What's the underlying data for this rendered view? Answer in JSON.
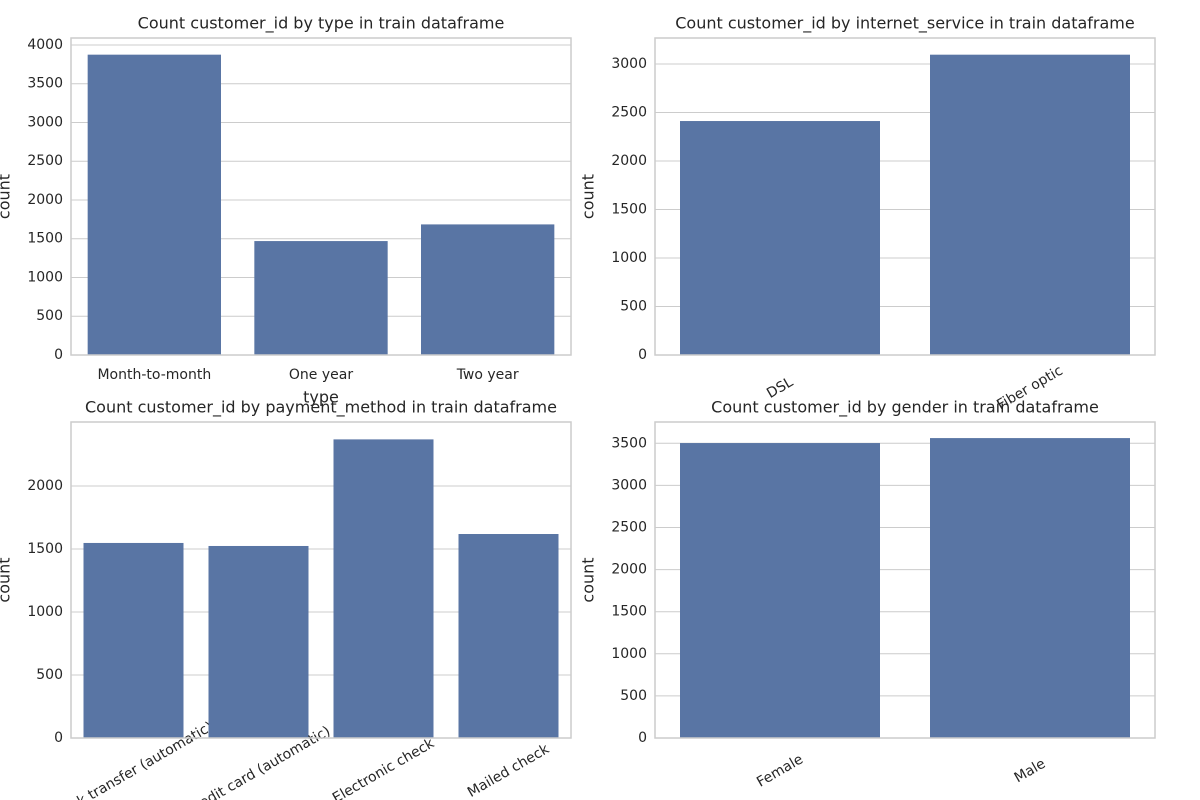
{
  "chart_data": [
    {
      "type": "bar",
      "title": "Count customer_id by type in train dataframe",
      "xlabel": "type",
      "ylabel": "count",
      "categories": [
        "Month-to-month",
        "One year",
        "Two year"
      ],
      "values": [
        3875,
        1470,
        1685
      ],
      "color": "#5975a4",
      "ylim": [
        0,
        4090
      ],
      "yticks": [
        0,
        500,
        1000,
        1500,
        2000,
        2500,
        3000,
        3500,
        4000
      ],
      "grid": true
    },
    {
      "type": "bar",
      "title": "Count customer_id by internet_service in train dataframe",
      "ylabel": "count",
      "categories": [
        "DSL",
        "Fiber optic"
      ],
      "values": [
        2412,
        3096
      ],
      "color": "#5975a4",
      "ylim": [
        0,
        3268
      ],
      "yticks": [
        0,
        500,
        1000,
        1500,
        2000,
        2500,
        3000
      ],
      "grid": true
    },
    {
      "type": "bar",
      "title": "Count customer_id by payment_method in train dataframe",
      "ylabel": "count",
      "categories": [
        "Bank transfer (automatic)",
        "Credit card (automatic)",
        "Electronic check",
        "Mailed check"
      ],
      "values": [
        1548,
        1524,
        2370,
        1619
      ],
      "color": "#5975a4",
      "ylim": [
        0,
        2508
      ],
      "yticks": [
        0,
        500,
        1000,
        1500,
        2000
      ],
      "grid": true
    },
    {
      "type": "bar",
      "title": "Count customer_id by gender in train dataframe",
      "ylabel": "count",
      "categories": [
        "Female",
        "Male"
      ],
      "values": [
        3503,
        3562
      ],
      "color": "#5975a4",
      "ylim": [
        0,
        3753
      ],
      "yticks": [
        0,
        500,
        1000,
        1500,
        2000,
        2500,
        3000,
        3500
      ],
      "grid": true
    }
  ]
}
